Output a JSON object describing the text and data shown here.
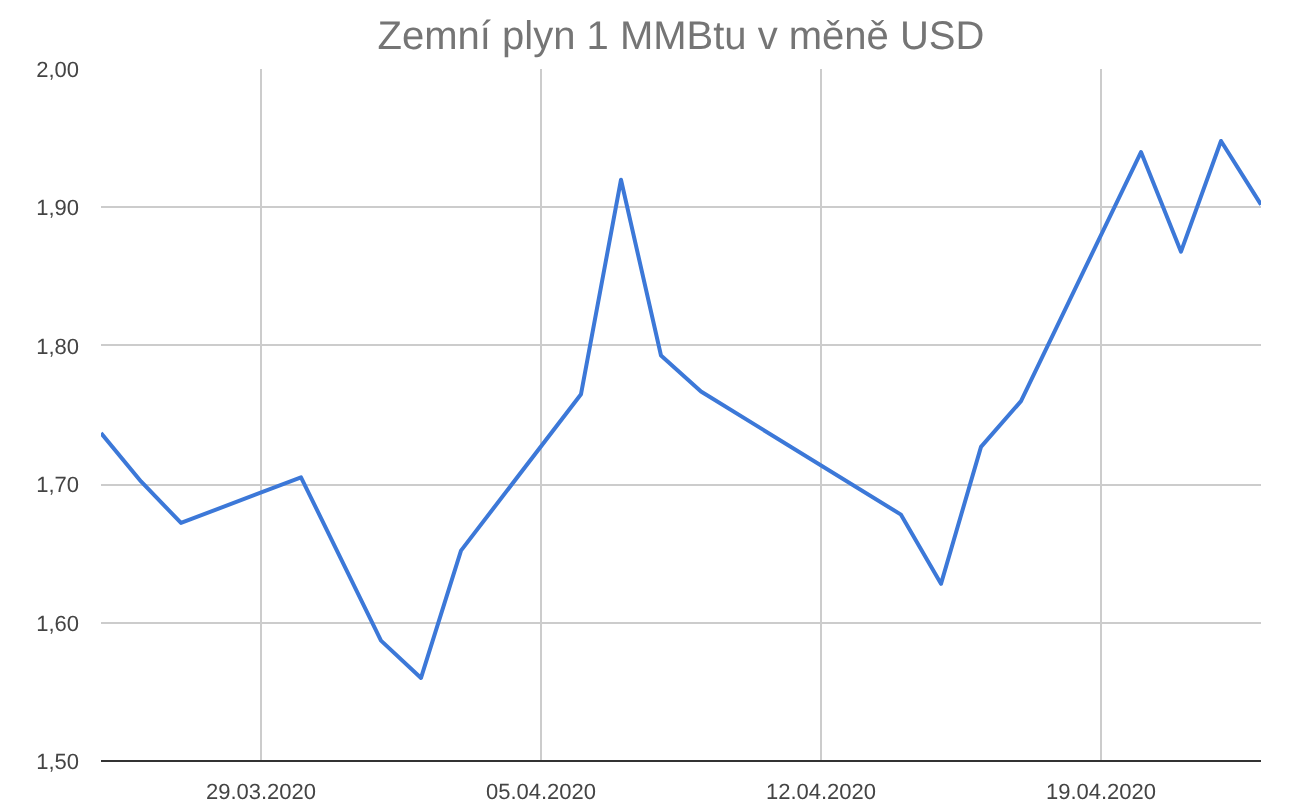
{
  "chart_data": {
    "type": "line",
    "title": "Zemní plyn 1 MMBtu v měně USD",
    "x": [
      "2020-03-25",
      "2020-03-26",
      "2020-03-27",
      "2020-03-30",
      "2020-04-01",
      "2020-04-02",
      "2020-04-03",
      "2020-04-06",
      "2020-04-07",
      "2020-04-08",
      "2020-04-09",
      "2020-04-14",
      "2020-04-15",
      "2020-04-16",
      "2020-04-17",
      "2020-04-20",
      "2020-04-21",
      "2020-04-22",
      "2020-04-23"
    ],
    "series": [
      {
        "color": "#3c78d8",
        "values": [
          1.737,
          1.702,
          1.672,
          1.705,
          1.587,
          1.56,
          1.652,
          1.765,
          1.92,
          1.793,
          1.767,
          1.678,
          1.628,
          1.727,
          1.76,
          1.94,
          1.868,
          1.948,
          1.902
        ]
      }
    ],
    "xlim": [
      "2020-03-25",
      "2020-04-23"
    ],
    "xticks": [
      {
        "value": "2020-03-29",
        "label": "29.03.2020"
      },
      {
        "value": "2020-04-05",
        "label": "05.04.2020"
      },
      {
        "value": "2020-04-12",
        "label": "12.04.2020"
      },
      {
        "value": "2020-04-19",
        "label": "19.04.2020"
      }
    ],
    "ylim": [
      1.5,
      2.0
    ],
    "yticks": [
      {
        "value": 1.5,
        "label": "1,50"
      },
      {
        "value": 1.6,
        "label": "1,60"
      },
      {
        "value": 1.7,
        "label": "1,70"
      },
      {
        "value": 1.8,
        "label": "1,80"
      },
      {
        "value": 1.9,
        "label": "1,90"
      },
      {
        "value": 2.0,
        "label": "2,00"
      }
    ],
    "grid": true,
    "marker": "none",
    "line_style": "solid"
  }
}
